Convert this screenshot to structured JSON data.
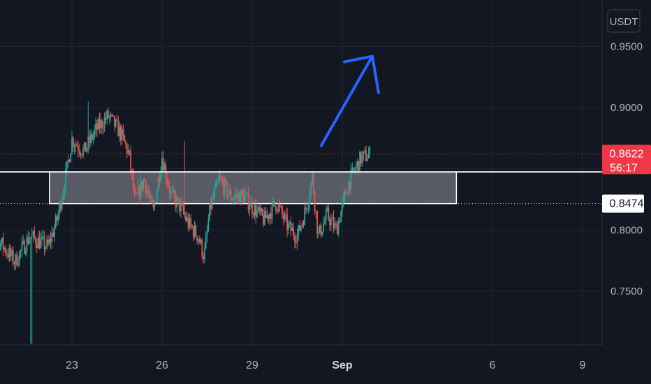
{
  "chart_data": {
    "type": "candlestick",
    "currency": "USDT",
    "y_ticks": [
      "0.9500",
      "0.9000",
      "0.8000",
      "0.7500"
    ],
    "x_ticks": [
      "23",
      "26",
      "29",
      "Sep",
      "6",
      "9"
    ],
    "ylim": [
      0.706,
      0.988
    ],
    "current_price": {
      "value": "0.8622",
      "countdown": "56:17",
      "level": 0.8622
    },
    "marker_price": {
      "value": "0.8474",
      "level": 0.8474
    },
    "support_zone": {
      "top": 0.8474,
      "bottom": 0.8215,
      "from_day": 22.25,
      "to_day": 35.8
    },
    "arrow": {
      "from": [
        31.3,
        0.869
      ],
      "to": [
        33.0,
        0.942
      ]
    },
    "grid": true,
    "colors": {
      "background": "#131722",
      "up": "#26a69a",
      "down": "#ef5350",
      "grid": "#232733",
      "zone": "#6b6e78",
      "arrow": "#2962ff",
      "price_label": "#f23645"
    }
  }
}
